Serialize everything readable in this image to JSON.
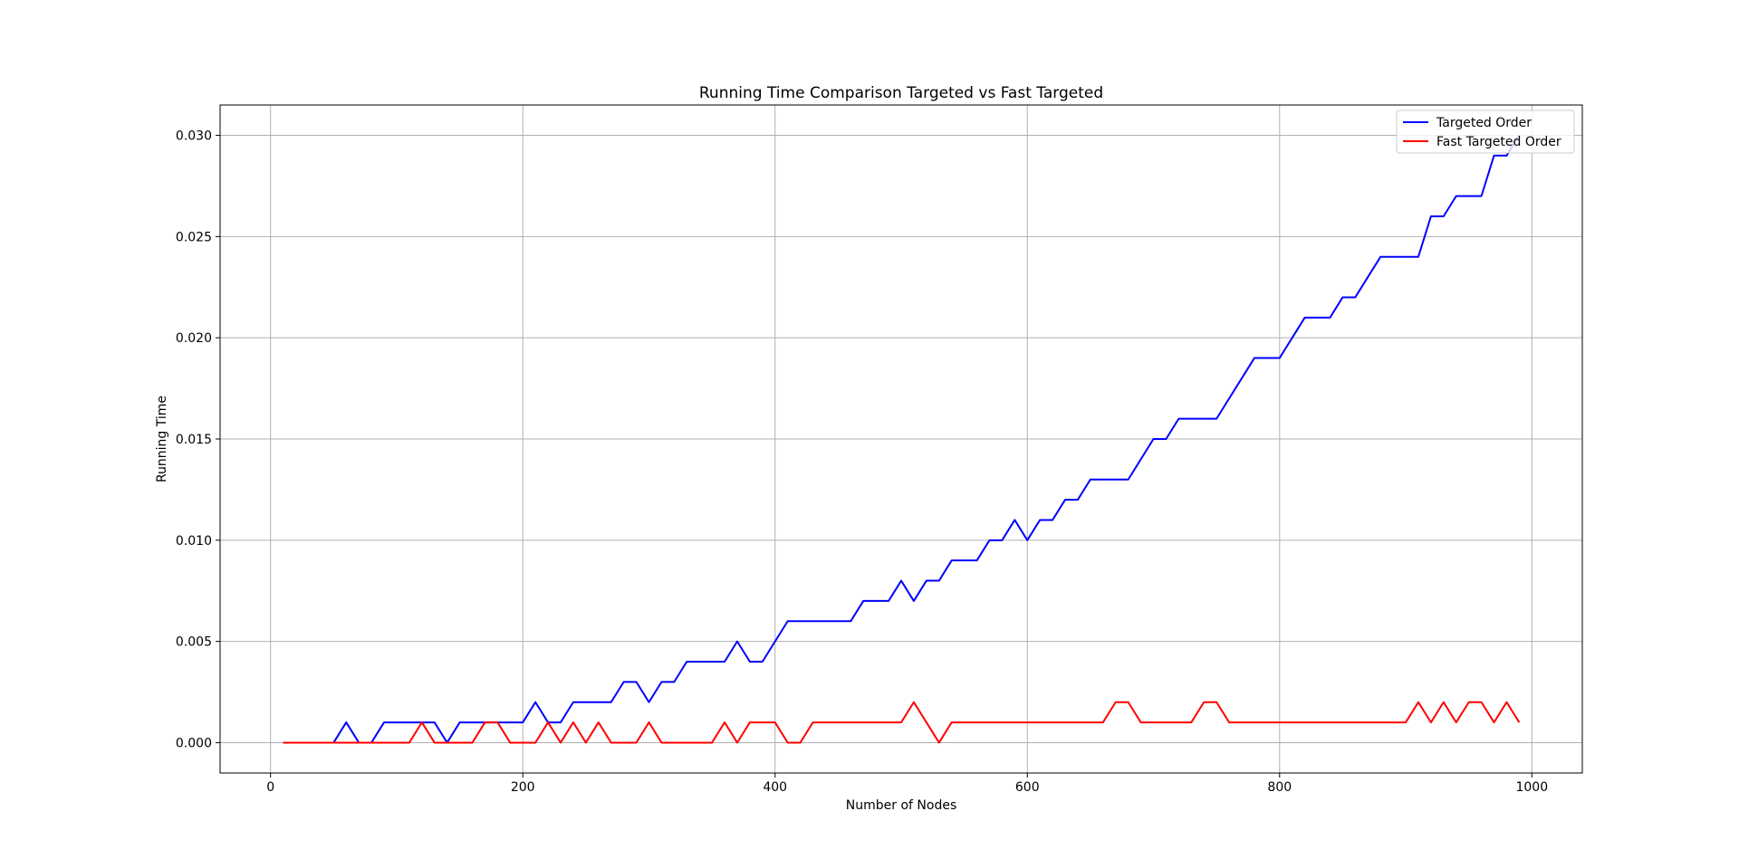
{
  "chart_data": {
    "type": "line",
    "title": "Running Time Comparison Targeted vs Fast Targeted",
    "xlabel": "Number of Nodes",
    "ylabel": "Running Time",
    "xlim": [
      -40,
      1040
    ],
    "ylim": [
      -0.0015,
      0.0315
    ],
    "xticks": [
      0,
      200,
      400,
      600,
      800,
      1000
    ],
    "xtick_labels": [
      "0",
      "200",
      "400",
      "600",
      "800",
      "1000"
    ],
    "yticks": [
      0.0,
      0.005,
      0.01,
      0.015,
      0.02,
      0.025,
      0.03
    ],
    "ytick_labels": [
      "0.000",
      "0.005",
      "0.010",
      "0.015",
      "0.020",
      "0.025",
      "0.030"
    ],
    "grid": true,
    "legend_position": "top-right",
    "x": [
      10,
      20,
      30,
      40,
      50,
      60,
      70,
      80,
      90,
      100,
      110,
      120,
      130,
      140,
      150,
      160,
      170,
      180,
      190,
      200,
      210,
      220,
      230,
      240,
      250,
      260,
      270,
      280,
      290,
      300,
      310,
      320,
      330,
      340,
      350,
      360,
      370,
      380,
      390,
      400,
      410,
      420,
      430,
      440,
      450,
      460,
      470,
      480,
      490,
      500,
      510,
      520,
      530,
      540,
      550,
      560,
      570,
      580,
      590,
      600,
      610,
      620,
      630,
      640,
      650,
      660,
      670,
      680,
      690,
      700,
      710,
      720,
      730,
      740,
      750,
      760,
      770,
      780,
      790,
      800,
      810,
      820,
      830,
      840,
      850,
      860,
      870,
      880,
      890,
      900,
      910,
      920,
      930,
      940,
      950,
      960,
      970,
      980,
      990
    ],
    "series": [
      {
        "name": "Targeted Order",
        "color": "#0000ff",
        "values": [
          0,
          0,
          0,
          0,
          0,
          0.001,
          0,
          0,
          0.001,
          0.001,
          0.001,
          0.001,
          0.001,
          0,
          0.001,
          0.001,
          0.001,
          0.001,
          0.001,
          0.001,
          0.002,
          0.001,
          0.001,
          0.002,
          0.002,
          0.002,
          0.002,
          0.003,
          0.003,
          0.002,
          0.003,
          0.003,
          0.004,
          0.004,
          0.004,
          0.004,
          0.005,
          0.004,
          0.004,
          0.005,
          0.006,
          0.006,
          0.006,
          0.006,
          0.006,
          0.006,
          0.007,
          0.007,
          0.007,
          0.008,
          0.007,
          0.008,
          0.008,
          0.009,
          0.009,
          0.009,
          0.01,
          0.01,
          0.011,
          0.01,
          0.011,
          0.011,
          0.012,
          0.012,
          0.013,
          0.013,
          0.013,
          0.013,
          0.014,
          0.015,
          0.015,
          0.016,
          0.016,
          0.016,
          0.016,
          0.017,
          0.018,
          0.019,
          0.019,
          0.019,
          0.02,
          0.021,
          0.021,
          0.021,
          0.022,
          0.022,
          0.023,
          0.024,
          0.024,
          0.024,
          0.024,
          0.026,
          0.026,
          0.027,
          0.027,
          0.027,
          0.029,
          0.029,
          0.03
        ]
      },
      {
        "name": "Fast Targeted Order",
        "color": "#ff0000",
        "values": [
          0,
          0,
          0,
          0,
          0,
          0,
          0,
          0,
          0,
          0,
          0,
          0.001,
          0,
          0,
          0,
          0,
          0.001,
          0.001,
          0,
          0,
          0,
          0.001,
          0,
          0.001,
          0,
          0.001,
          0,
          0,
          0,
          0.001,
          0,
          0,
          0,
          0,
          0,
          0.001,
          0,
          0.001,
          0.001,
          0.001,
          0,
          0,
          0.001,
          0.001,
          0.001,
          0.001,
          0.001,
          0.001,
          0.001,
          0.001,
          0.002,
          0.001,
          0,
          0.001,
          0.001,
          0.001,
          0.001,
          0.001,
          0.001,
          0.001,
          0.001,
          0.001,
          0.001,
          0.001,
          0.001,
          0.001,
          0.002,
          0.002,
          0.001,
          0.001,
          0.001,
          0.001,
          0.001,
          0.002,
          0.002,
          0.001,
          0.001,
          0.001,
          0.001,
          0.001,
          0.001,
          0.001,
          0.001,
          0.001,
          0.001,
          0.001,
          0.001,
          0.001,
          0.001,
          0.001,
          0.002,
          0.001,
          0.002,
          0.001,
          0.002,
          0.002,
          0.001,
          0.002,
          0.001
        ]
      }
    ]
  }
}
